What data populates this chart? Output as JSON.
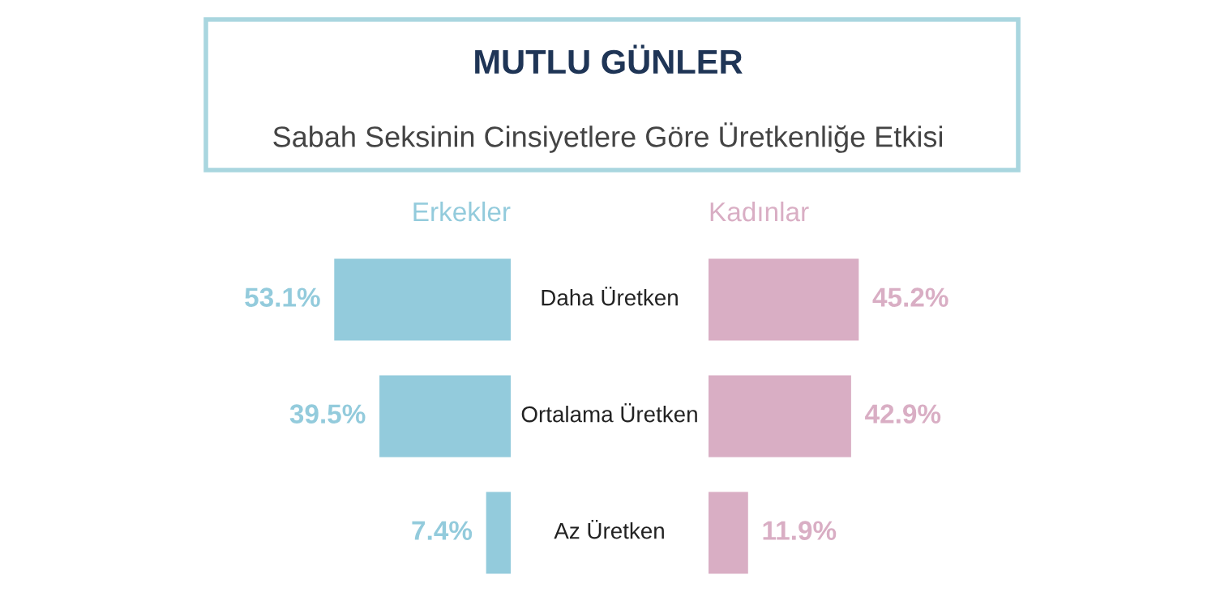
{
  "chart_data": [
    {
      "type": "bar",
      "title": "MUTLU GÜNLER",
      "subtitle": "Sabah Seksinin Cinsiyetlere Göre Üretkenliğe Etkisi",
      "orientation": "horizontal",
      "categories": [
        "Daha Üretken",
        "Ortalama Üretken",
        "Az Üretken"
      ],
      "series": [
        {
          "name": "Erkekler",
          "color": "#93cbdc",
          "values": [
            53.1,
            39.5,
            7.4
          ],
          "value_labels": [
            "53.1%",
            "39.5%",
            "7.4%"
          ]
        }
      ],
      "data_labels": false
    },
    {
      "type": "bar",
      "orientation": "horizontal",
      "categories": [
        null,
        null,
        null
      ],
      "series": [
        {
          "name": "Kadınlar",
          "color": "#d9aec4",
          "values": [
            45.2,
            42.9,
            11.9
          ],
          "value_labels": [
            "45.2%",
            "42.9%",
            "11.9%"
          ]
        }
      ],
      "data_labels": false
    }
  ]
}
